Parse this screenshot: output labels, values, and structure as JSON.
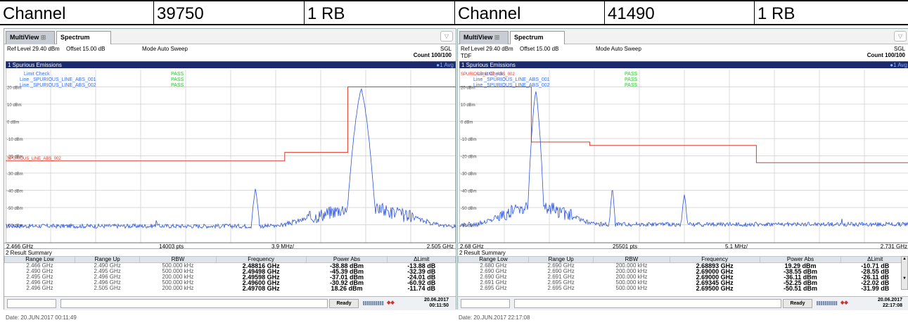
{
  "table_header": {
    "left": {
      "label": "Channel",
      "channel": "39750",
      "rb": "1 RB"
    },
    "right": {
      "label": "Channel",
      "channel": "41490",
      "rb": "1 RB"
    }
  },
  "colors": {
    "trace": "#2c54e0",
    "limit": "#e03a2a",
    "pass": "#2ec42e",
    "label_blue": "#3a6ee8"
  },
  "panels": [
    {
      "tab_multiview": "MultiView",
      "tab_spectrum": "Spectrum",
      "ref_level": "Ref Level 29.40 dBm",
      "offset": "Offset 15.00 dB",
      "mode": "Mode Auto Sweep",
      "sgl": "SGL",
      "count": "Count 100/100",
      "tdf": "",
      "window_title": "1 Spurious Emissions",
      "avg": "●1 Avg",
      "limit_check": {
        "title": "Limit Check",
        "title_result": "PASS",
        "line1": "Line _SPURIOUS_LINE_ABS_001",
        "line1_result": "PASS",
        "line2": "Line _SPURIOUS_LINE_ABS_002",
        "line2_result": "PASS"
      },
      "limit_line_label": "SPURIOUS_LINE_ABS_002",
      "y_ticks": [
        "20 dBm",
        "10 dBm",
        "0 dBm",
        "-10 dBm",
        "-20 dBm",
        "-30 dBm",
        "-40 dBm",
        "-50 dBm",
        "-60 dBm"
      ],
      "start": "2.466 GHz",
      "pts": "14003 pts",
      "span": "3.9 MHz/",
      "stop": "2.505 GHz",
      "summary_title": "2 Result Summary",
      "columns": [
        "Range Low",
        "Range Up",
        "RBW",
        "Frequency",
        "Power Abs",
        "ΔLimit"
      ],
      "rows": [
        [
          "2.466 GHz",
          "2.490 GHz",
          "500.000 kHz",
          "2.48816 GHz",
          "-38.88 dBm",
          "-13.88 dB"
        ],
        [
          "2.490 GHz",
          "2.495 GHz",
          "500.000 kHz",
          "2.49498 GHz",
          "-45.39 dBm",
          "-32.39 dB"
        ],
        [
          "2.495 GHz",
          "2.496 GHz",
          "200.000 kHz",
          "2.49598 GHz",
          "-37.01 dBm",
          "-24.01 dB"
        ],
        [
          "2.496 GHz",
          "2.496 GHz",
          "500.000 kHz",
          "2.49600 GHz",
          "-30.92 dBm",
          "-60.92 dB"
        ],
        [
          "2.496 GHz",
          "2.505 GHz",
          "200.000 kHz",
          "2.49708 GHz",
          "18.26 dBm",
          "-11.74 dB"
        ]
      ],
      "status": "Ready",
      "ts_date": "20.06.2017",
      "ts_time": "00:11:50",
      "date_line": "Date: 20.JUN.2017 00:11:49"
    },
    {
      "tab_multiview": "MultiView",
      "tab_spectrum": "Spectrum",
      "ref_level": "Ref Level 29.40 dBm",
      "offset": "Offset 15.00 dB",
      "mode": "Mode Auto Sweep",
      "sgl": "SGL",
      "count": "Count 100/100",
      "tdf": "TDF",
      "window_title": "1 Spurious Emissions",
      "avg": "●1 Avg",
      "limit_check": {
        "title": "Limit Check",
        "title_result": "PASS",
        "line1": "Line _SPURIOUS_LINE_ABS_001",
        "line1_result": "PASS",
        "line2": "Line _SPURIOUS_LINE_ABS_002",
        "line2_result": "PASS"
      },
      "limit_line_label": "SPURIOUS_LINE_ABS_002",
      "y_ticks": [
        "20 dBm",
        "10 dBm",
        "0 dBm",
        "-10 dBm",
        "-20 dBm",
        "-30 dBm",
        "-40 dBm",
        "-50 dBm",
        "-60 dBm"
      ],
      "start": "2.68 GHz",
      "pts": "25501 pts",
      "span": "5.1 MHz/",
      "stop": "2.731 GHz",
      "summary_title": "2 Result Summary",
      "columns": [
        "Range Low",
        "Range Up",
        "RBW",
        "Frequency",
        "Power Abs",
        "ΔLimit"
      ],
      "rows": [
        [
          "2.680 GHz",
          "2.690 GHz",
          "200.000 kHz",
          "2.68893 GHz",
          "19.29 dBm",
          "-10.71 dB"
        ],
        [
          "2.690 GHz",
          "2.690 GHz",
          "200.000 kHz",
          "2.69000 GHz",
          "-38.55 dBm",
          "-28.55 dB"
        ],
        [
          "2.690 GHz",
          "2.691 GHz",
          "200.000 kHz",
          "2.69000 GHz",
          "-36.11 dBm",
          "-26.11 dB"
        ],
        [
          "2.691 GHz",
          "2.695 GHz",
          "500.000 kHz",
          "2.69345 GHz",
          "-52.25 dBm",
          "-22.02 dB"
        ],
        [
          "2.695 GHz",
          "2.695 GHz",
          "500.000 kHz",
          "2.69500 GHz",
          "-50.51 dBm",
          "-31.99 dB"
        ]
      ],
      "status": "Ready",
      "ts_date": "20.06.2017",
      "ts_time": "22:17:08",
      "date_line": "Date: 20.JUN.2017 22:17:08"
    }
  ]
}
